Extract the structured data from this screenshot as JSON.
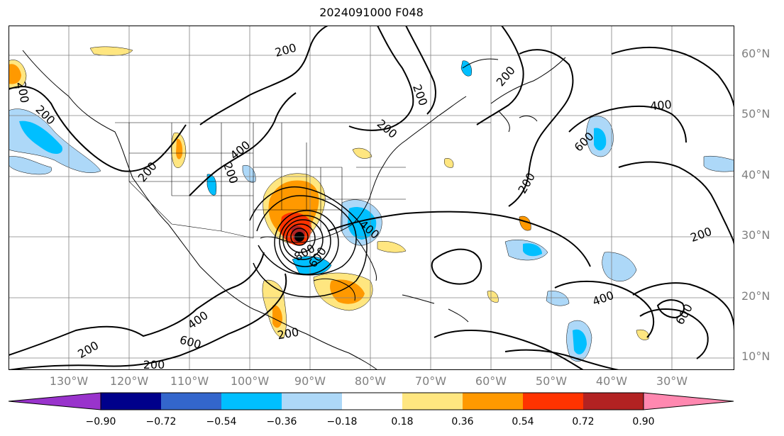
{
  "title": "2024091000 F048",
  "lat_labels": [
    "60°N",
    "50°N",
    "40°N",
    "30°N",
    "20°N",
    "10°N"
  ],
  "lon_labels": [
    "130°W",
    "120°W",
    "110°W",
    "100°W",
    "90°W",
    "80°W",
    "70°W",
    "60°W",
    "50°W",
    "40°W",
    "30°W"
  ],
  "contour_labels": [
    "200",
    "200",
    "200",
    "200",
    "200",
    "200",
    "200",
    "200",
    "200",
    "200",
    "200",
    "200",
    "200",
    "400",
    "400",
    "400",
    "400",
    "600",
    "600",
    "600",
    "600",
    "800",
    "400"
  ],
  "colorbar": {
    "colors": [
      "#9933cc",
      "#00008b",
      "#3366cc",
      "#00bfff",
      "#add8f8",
      "#ffffff",
      "#ffe680",
      "#ff9900",
      "#ff3300",
      "#b22222",
      "#ff88b0"
    ],
    "ticks": [
      "−0.90",
      "−0.72",
      "−0.54",
      "−0.36",
      "−0.18",
      "0.18",
      "0.36",
      "0.54",
      "0.72",
      "0.90"
    ]
  }
}
